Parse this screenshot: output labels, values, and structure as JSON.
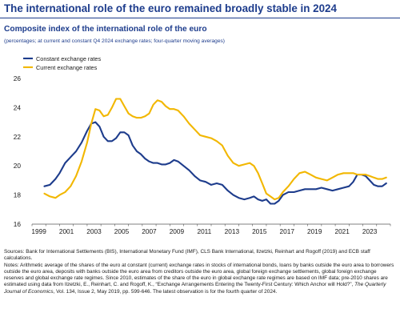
{
  "header": {
    "headline": "The international role of the euro remained broadly stable in 2024"
  },
  "chart_data": {
    "type": "line",
    "title": "Composite index of the international role of the euro",
    "subtitle": "(percentages; at current and constant Q4 2024 exchange rates; four-quarter moving averages)",
    "xlabel": "",
    "ylabel": "",
    "xlim": [
      1999.0,
      2025.0
    ],
    "ylim": [
      16,
      26
    ],
    "x_ticks": [
      "1999",
      "2001",
      "2003",
      "2005",
      "2007",
      "2009",
      "2011",
      "2013",
      "2015",
      "2017",
      "2019",
      "2021",
      "2023"
    ],
    "y_ticks": [
      "16",
      "18",
      "20",
      "22",
      "24",
      "26"
    ],
    "grid": false,
    "legend_position": "top-left",
    "series": [
      {
        "name": "Constant exchange rates",
        "color": "#1d3c8c",
        "x": [
          1999.9,
          2000.3,
          2000.7,
          2001.0,
          2001.4,
          2001.8,
          2002.2,
          2002.6,
          2003.0,
          2003.3,
          2003.6,
          2003.9,
          2004.2,
          2004.5,
          2004.8,
          2005.1,
          2005.4,
          2005.7,
          2006.0,
          2006.3,
          2006.6,
          2006.9,
          2007.2,
          2007.5,
          2007.8,
          2008.1,
          2008.4,
          2008.7,
          2009.0,
          2009.3,
          2009.6,
          2010.0,
          2010.4,
          2010.8,
          2011.2,
          2011.6,
          2012.0,
          2012.4,
          2012.8,
          2013.2,
          2013.6,
          2014.0,
          2014.4,
          2014.8,
          2015.1,
          2015.4,
          2015.7,
          2016.0,
          2016.3,
          2016.6,
          2016.9,
          2017.2,
          2017.6,
          2018.0,
          2018.4,
          2018.8,
          2019.2,
          2019.6,
          2020.0,
          2020.4,
          2020.8,
          2021.2,
          2021.6,
          2022.0,
          2022.3,
          2022.6,
          2022.9,
          2023.2,
          2023.5,
          2023.8,
          2024.1,
          2024.4,
          2024.7
        ],
        "values": [
          18.6,
          18.7,
          19.1,
          19.5,
          20.2,
          20.6,
          21.0,
          21.6,
          22.4,
          22.9,
          23.0,
          22.7,
          22.0,
          21.7,
          21.7,
          21.9,
          22.3,
          22.3,
          22.1,
          21.4,
          21.0,
          20.8,
          20.5,
          20.3,
          20.2,
          20.2,
          20.1,
          20.1,
          20.2,
          20.4,
          20.3,
          20.0,
          19.7,
          19.3,
          19.0,
          18.9,
          18.7,
          18.8,
          18.7,
          18.3,
          18.0,
          17.8,
          17.7,
          17.8,
          17.9,
          17.7,
          17.6,
          17.7,
          17.4,
          17.4,
          17.6,
          18.0,
          18.2,
          18.2,
          18.3,
          18.4,
          18.4,
          18.4,
          18.5,
          18.4,
          18.3,
          18.4,
          18.5,
          18.6,
          18.9,
          19.4,
          19.4,
          19.3,
          19.0,
          18.7,
          18.6,
          18.6,
          18.8
        ]
      },
      {
        "name": "Current exchange rates",
        "color": "#f2b700",
        "x": [
          1999.9,
          2000.3,
          2000.7,
          2001.0,
          2001.4,
          2001.8,
          2002.2,
          2002.6,
          2003.0,
          2003.3,
          2003.6,
          2003.9,
          2004.2,
          2004.5,
          2004.8,
          2005.1,
          2005.4,
          2005.7,
          2006.0,
          2006.3,
          2006.6,
          2006.9,
          2007.2,
          2007.5,
          2007.8,
          2008.1,
          2008.4,
          2008.7,
          2009.0,
          2009.3,
          2009.6,
          2010.0,
          2010.4,
          2010.8,
          2011.2,
          2011.6,
          2012.0,
          2012.4,
          2012.8,
          2013.2,
          2013.6,
          2014.0,
          2014.4,
          2014.8,
          2015.1,
          2015.4,
          2015.7,
          2016.0,
          2016.3,
          2016.6,
          2016.9,
          2017.2,
          2017.6,
          2018.0,
          2018.4,
          2018.8,
          2019.2,
          2019.6,
          2020.0,
          2020.4,
          2020.8,
          2021.2,
          2021.6,
          2022.0,
          2022.3,
          2022.6,
          2022.9,
          2023.2,
          2023.5,
          2023.8,
          2024.1,
          2024.4,
          2024.7
        ],
        "values": [
          18.1,
          17.9,
          17.8,
          18.0,
          18.2,
          18.6,
          19.3,
          20.3,
          21.6,
          22.9,
          23.9,
          23.8,
          23.4,
          23.5,
          24.0,
          24.6,
          24.6,
          24.1,
          23.6,
          23.4,
          23.3,
          23.3,
          23.4,
          23.6,
          24.2,
          24.5,
          24.4,
          24.1,
          23.9,
          23.9,
          23.8,
          23.4,
          22.9,
          22.5,
          22.1,
          22.0,
          21.9,
          21.7,
          21.4,
          20.7,
          20.2,
          20.0,
          20.1,
          20.2,
          20.0,
          19.5,
          18.8,
          18.1,
          17.9,
          17.7,
          17.8,
          18.2,
          18.6,
          19.1,
          19.5,
          19.6,
          19.4,
          19.2,
          19.1,
          19.0,
          19.2,
          19.4,
          19.5,
          19.5,
          19.5,
          19.4,
          19.4,
          19.4,
          19.3,
          19.2,
          19.1,
          19.1,
          19.2
        ]
      }
    ]
  },
  "notes": {
    "sources": "Sources: Bank for International Settlements (BIS), International Monetary Fund (IMF), CLS Bank International, Ilzetzki, Reinhart and Rogoff (2019) and ECB staff calculations.",
    "notes_text": "Notes: Arithmetic average of the shares of the euro at constant (current) exchange rates in stocks of international bonds, loans by banks outside the euro area to borrowers outside the euro area, deposits with banks outside the euro area from creditors outside the euro area, global foreign exchange settlements, global foreign exchange reserves and global exchange rate regimes. Since 2010, estimates of the share of the euro in global exchange rate regimes are based on IMF data; pre-2010 shares are estimated using data from Ilzetzki, E., Reinhart, C. and Rogoff, K., “Exchange Arrangements Entering the Twenty-First Century: Which Anchor will Hold?”,",
    "journal": "The Quarterly Journal of Economics",
    "citation_tail": ", Vol. 134, Issue 2, May 2019, pp. 599-646. The latest observation is for the fourth quarter of 2024."
  }
}
